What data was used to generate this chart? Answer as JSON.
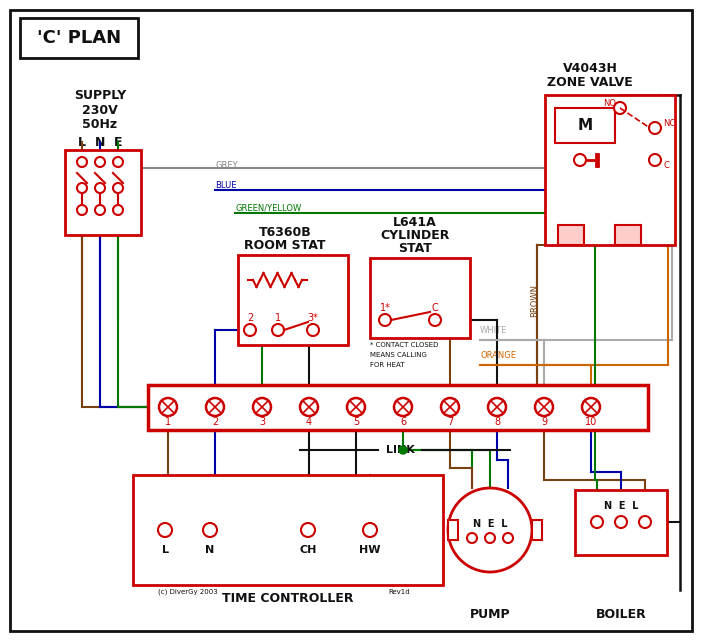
{
  "title": "'C' PLAN",
  "bg": "#ffffff",
  "RED": "#cc0000",
  "BLUE": "#0000aa",
  "GREEN": "#007700",
  "BROWN": "#7b4010",
  "GREY": "#888888",
  "ORANGE": "#cc6600",
  "BLACK": "#111111",
  "WHITE_WIRE": "#aaaaaa",
  "DKBLUE": "#000077",
  "supply_label": "SUPPLY",
  "supply_v": "230V",
  "supply_hz": "50Hz",
  "zone_valve_line1": "V4043H",
  "zone_valve_line2": "ZONE VALVE",
  "room_stat_line1": "T6360B",
  "room_stat_line2": "ROOM STAT",
  "cyl_stat_line1": "L641A",
  "cyl_stat_line2": "CYLINDER",
  "cyl_stat_line3": "STAT",
  "tc_label": "TIME CONTROLLER",
  "pump_label": "PUMP",
  "boiler_label": "BOILER",
  "link_label": "LINK",
  "copyright": "(c) DiverGy 2003",
  "revision": "Rev1d",
  "note_line1": "* CONTACT CLOSED",
  "note_line2": "MEANS CALLING",
  "note_line3": "FOR HEAT",
  "wire_grey": "GREY",
  "wire_blue": "BLUE",
  "wire_gy": "GREEN/YELLOW",
  "wire_brown": "BROWN",
  "wire_white": "WHITE",
  "wire_orange": "ORANGE"
}
